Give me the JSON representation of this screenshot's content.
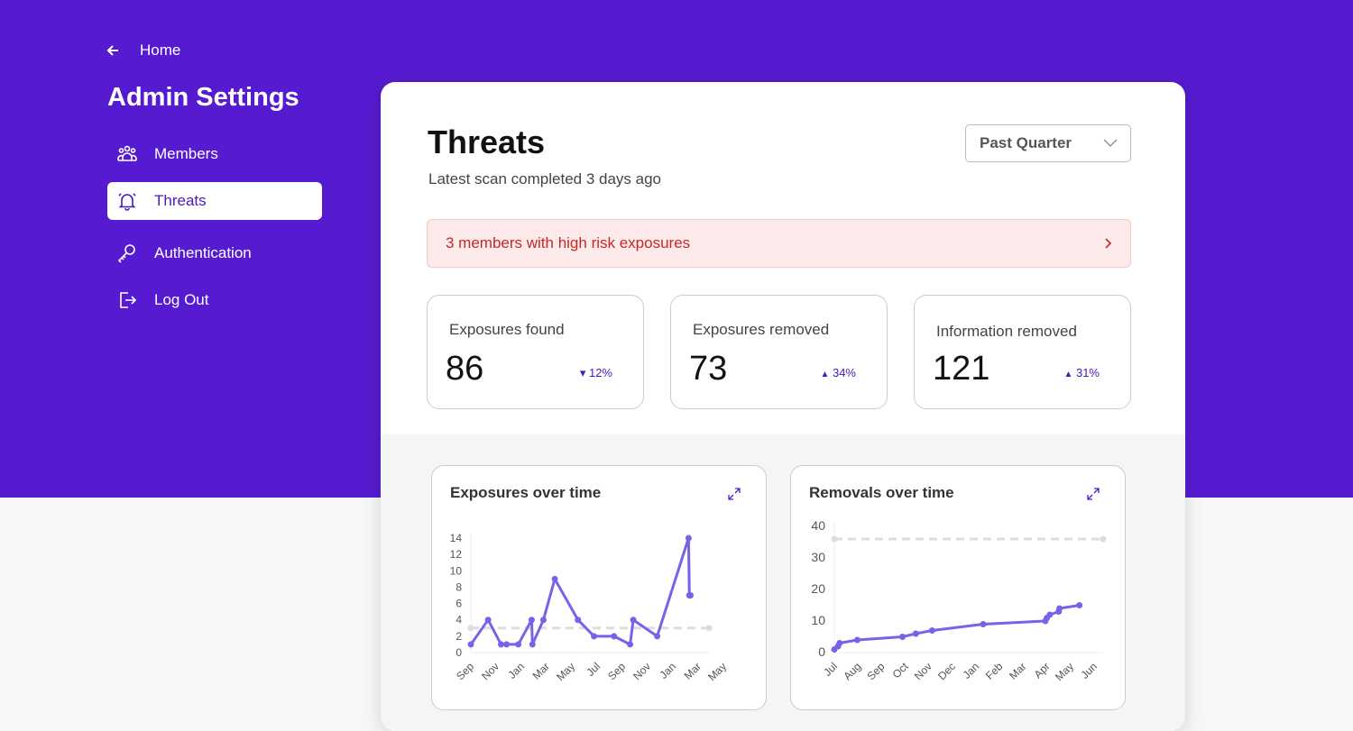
{
  "nav": {
    "home": "Home",
    "title": "Admin Settings",
    "items": [
      {
        "label": "Members",
        "icon": "users-icon"
      },
      {
        "label": "Threats",
        "icon": "bell-icon",
        "active": true
      },
      {
        "label": "Authentication",
        "icon": "key-icon"
      },
      {
        "label": "Log Out",
        "icon": "logout-icon"
      }
    ]
  },
  "main": {
    "title": "Threats",
    "subtitle": "Latest scan completed 3 days ago",
    "period": "Past Quarter",
    "alert": "3 members with high risk exposures",
    "stats": [
      {
        "label": "Exposures found",
        "value": "86",
        "change": "12%",
        "direction": "down"
      },
      {
        "label": "Exposures removed",
        "value": "73",
        "change": "34%",
        "direction": "up"
      },
      {
        "label": "Information removed",
        "value": "121",
        "change": "31%",
        "direction": "up"
      }
    ]
  },
  "colors": {
    "brand": "#561bd0",
    "line": "#7b61e8",
    "alert_text": "#c62828"
  },
  "chart_data": [
    {
      "type": "line",
      "title": "Exposures over time",
      "ylim": [
        0,
        14
      ],
      "yticks": [
        0,
        2,
        4,
        6,
        8,
        10,
        12,
        14
      ],
      "xlim": [
        "2021-09-01",
        "2023-05-01"
      ],
      "xticks": [
        "Sep",
        "Nov",
        "Jan",
        "Mar",
        "May",
        "Jul",
        "Sep",
        "Nov",
        "Jan",
        "Mar",
        "May"
      ],
      "reference_line": 3,
      "points": [
        [
          "2021-09-01",
          1
        ],
        [
          "2021-10-15",
          4
        ],
        [
          "2021-11-17",
          1
        ],
        [
          "2021-12-01",
          1
        ],
        [
          "2021-12-31",
          1
        ],
        [
          "2022-02-03",
          4
        ],
        [
          "2022-02-05",
          1
        ],
        [
          "2022-03-05",
          4
        ],
        [
          "2022-04-03",
          9
        ],
        [
          "2022-06-01",
          4
        ],
        [
          "2022-07-12",
          2
        ],
        [
          "2022-09-01",
          2
        ],
        [
          "2022-10-12",
          1
        ],
        [
          "2022-10-20",
          4
        ],
        [
          "2022-12-20",
          2
        ],
        [
          "2023-03-10",
          14
        ],
        [
          "2023-03-12",
          7
        ],
        [
          "2023-03-15",
          7
        ]
      ]
    },
    {
      "type": "line",
      "title": "Removals over time",
      "ylim": [
        0,
        40
      ],
      "yticks": [
        0,
        10,
        20,
        30,
        40
      ],
      "xlim": [
        "2022-07-01",
        "2023-06-01"
      ],
      "xticks": [
        "Jul",
        "Aug",
        "Sep",
        "Oct",
        "Nov",
        "Dec",
        "Jan",
        "Feb",
        "Mar",
        "Apr",
        "May",
        "Jun"
      ],
      "reference_line": 36,
      "points": [
        [
          "2022-07-01",
          1
        ],
        [
          "2022-07-06",
          2
        ],
        [
          "2022-07-08",
          3
        ],
        [
          "2022-08-01",
          4
        ],
        [
          "2022-10-01",
          5
        ],
        [
          "2022-10-19",
          6
        ],
        [
          "2022-11-10",
          7
        ],
        [
          "2023-01-18",
          9
        ],
        [
          "2023-04-12",
          10
        ],
        [
          "2023-04-14",
          11
        ],
        [
          "2023-04-18",
          12
        ],
        [
          "2023-04-30",
          13
        ],
        [
          "2023-05-01",
          14
        ],
        [
          "2023-05-28",
          15
        ]
      ]
    }
  ]
}
